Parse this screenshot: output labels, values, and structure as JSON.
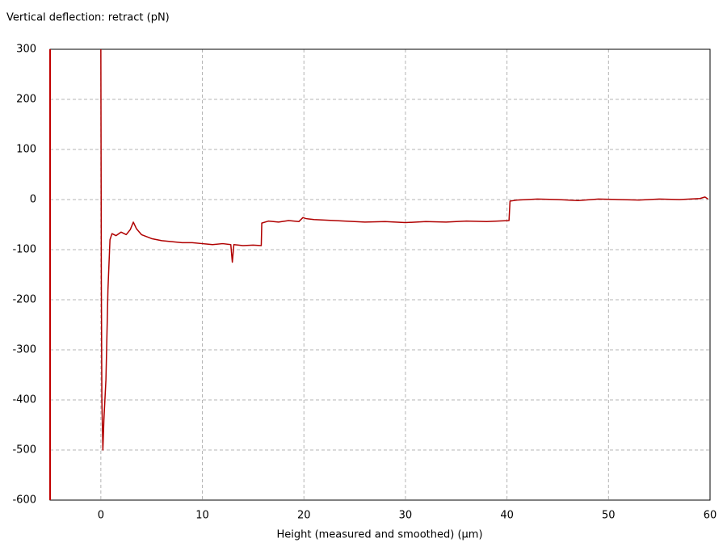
{
  "chart_data": {
    "type": "line",
    "title": "Vertical deflection: retract (pN)",
    "x_label": "Height (measured and smoothed) (µm)",
    "color": "#b00000",
    "grid": true,
    "xlim": [
      -5,
      60
    ],
    "ylim": [
      -600,
      300
    ],
    "xticks": [
      0,
      10,
      20,
      30,
      40,
      50,
      60
    ],
    "yticks": [
      -600,
      -500,
      -400,
      -300,
      -200,
      -100,
      0,
      100,
      200,
      300
    ],
    "x": [
      0,
      0.05,
      0.1,
      0.2,
      0.3,
      0.5,
      0.7,
      0.9,
      1.1,
      1.5,
      2,
      2.5,
      2.9,
      3.2,
      3.5,
      4,
      5,
      6,
      7,
      8,
      9,
      10,
      11,
      12,
      12.8,
      12.95,
      13.1,
      14,
      15,
      15.8,
      15.85,
      16.5,
      17.5,
      18.5,
      19.5,
      19.9,
      20.2,
      21,
      22,
      24,
      26,
      28,
      30,
      32,
      34,
      36,
      38,
      40.2,
      40.3,
      41,
      43,
      45,
      47,
      49,
      51,
      53,
      55,
      57,
      59,
      59.5,
      59.8
    ],
    "values": [
      300,
      -170,
      -400,
      -500,
      -440,
      -360,
      -180,
      -80,
      -68,
      -72,
      -65,
      -70,
      -60,
      -45,
      -58,
      -70,
      -78,
      -82,
      -84,
      -86,
      -86,
      -88,
      -90,
      -88,
      -90,
      -125,
      -90,
      -92,
      -91,
      -92,
      -47,
      -43,
      -45,
      -42,
      -44,
      -36,
      -38,
      -40,
      -41,
      -43,
      -45,
      -44,
      -46,
      -44,
      -45,
      -43,
      -44,
      -42,
      -3,
      -1,
      1,
      0,
      -2,
      1,
      0,
      -1,
      1,
      0,
      2,
      5,
      1
    ]
  }
}
